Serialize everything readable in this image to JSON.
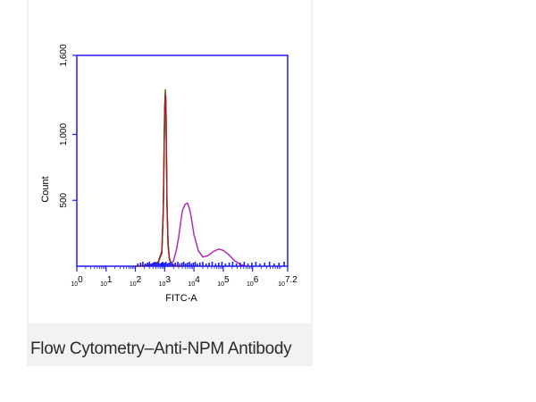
{
  "caption": "Flow Cytometry–Anti-NPM Antibody",
  "colors": {
    "axis": "#1a1aff",
    "isotype": "#6b6b2a",
    "control": "#3a7a3a",
    "negative": "#a02020",
    "npm": "#b020b0"
  },
  "chart_data": {
    "type": "line",
    "xlabel": "FITC-A",
    "ylabel": "Count",
    "xscale": "log",
    "xlim": [
      1,
      15848932
    ],
    "ylim": [
      0,
      1600
    ],
    "x_ticks": [
      {
        "base": "10",
        "exp": "0",
        "value": 1
      },
      {
        "base": "10",
        "exp": "1",
        "value": 10
      },
      {
        "base": "10",
        "exp": "2",
        "value": 100
      },
      {
        "base": "10",
        "exp": "3",
        "value": 1000
      },
      {
        "base": "10",
        "exp": "4",
        "value": 10000
      },
      {
        "base": "10",
        "exp": "5",
        "value": 100000
      },
      {
        "base": "10",
        "exp": "6",
        "value": 1000000
      },
      {
        "base": "10",
        "exp": "7.2",
        "value": 15848932
      }
    ],
    "y_ticks": [
      {
        "label": "500",
        "value": 500
      },
      {
        "label": "1,000",
        "value": 1000
      },
      {
        "label": "1,600",
        "value": 1600
      }
    ],
    "series": [
      {
        "color": "#6b6b2a",
        "x": [
          100,
          300,
          600,
          800,
          900,
          1000,
          1050,
          1100,
          1150,
          1200,
          1300,
          1450,
          1700,
          2200,
          4000
        ],
        "y": [
          0,
          8,
          30,
          120,
          450,
          1200,
          1340,
          1280,
          900,
          500,
          180,
          60,
          20,
          5,
          0
        ]
      },
      {
        "color": "#3a7a3a",
        "x": [
          100,
          300,
          600,
          800,
          900,
          1000,
          1050,
          1100,
          1150,
          1200,
          1300,
          1450,
          1700,
          2200,
          4000
        ],
        "y": [
          0,
          10,
          32,
          110,
          430,
          1180,
          1320,
          1260,
          880,
          480,
          170,
          55,
          18,
          4,
          0
        ]
      },
      {
        "color": "#a02020",
        "x": [
          100,
          300,
          600,
          800,
          900,
          1000,
          1050,
          1100,
          1150,
          1200,
          1300,
          1450,
          1700,
          2200,
          4000
        ],
        "y": [
          0,
          6,
          28,
          100,
          420,
          1160,
          1300,
          1240,
          860,
          470,
          160,
          50,
          15,
          4,
          0
        ]
      },
      {
        "color": "#b020b0",
        "x": [
          1500,
          2000,
          2500,
          3000,
          3500,
          4000,
          5000,
          6000,
          7000,
          8000,
          10000,
          14000,
          20000,
          30000,
          45000,
          70000,
          100000,
          150000,
          250000,
          400000,
          700000
        ],
        "y": [
          0,
          40,
          120,
          220,
          330,
          420,
          470,
          480,
          440,
          380,
          240,
          120,
          70,
          80,
          110,
          130,
          120,
          90,
          40,
          10,
          0
        ]
      }
    ]
  }
}
